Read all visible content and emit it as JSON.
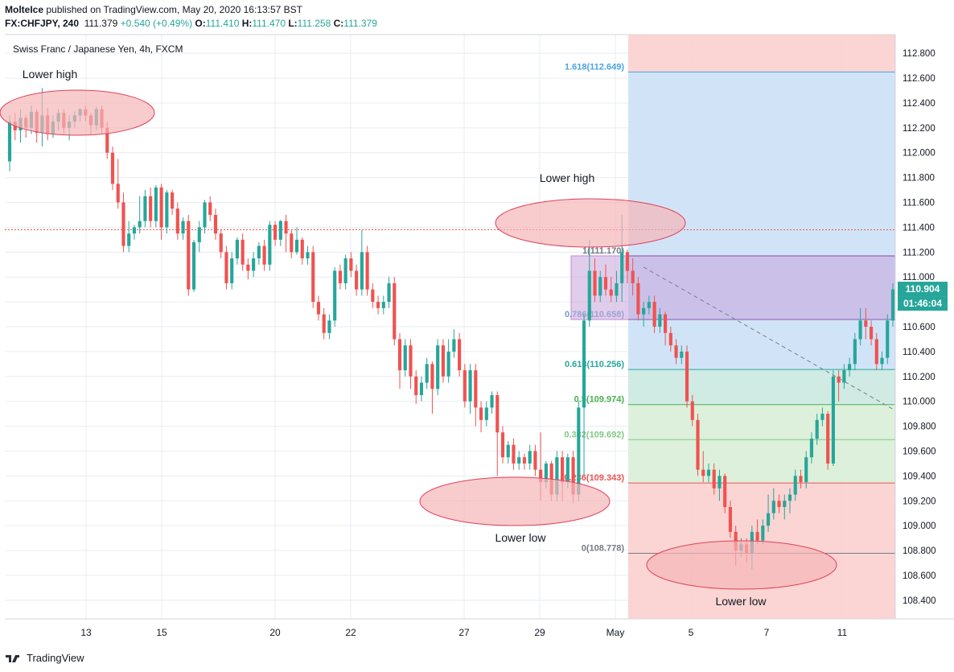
{
  "header": {
    "author": "MolteIce",
    "published": "published on TradingView.com, May 20, 2020 16:13:57 BST",
    "symbol": "FX:CHFJPY, 240",
    "last": "111.379",
    "change": "+0.540 (+0.49%)",
    "o_label": "O:",
    "o": "111.410",
    "h_label": "H:",
    "h": "111.470",
    "l_label": "L:",
    "l": "111.258",
    "c_label": "C:",
    "c": "111.379"
  },
  "footer": {
    "brand": "TradingView"
  },
  "colors": {
    "up": "#26a69a",
    "down": "#ef5350",
    "grid": "#e9ecf0",
    "ellipse_fill": "#f5b5b8",
    "ellipse_stroke": "#e0405a",
    "fib_red": "#f9d0ce",
    "fib_blue": "#cfe3f7",
    "fib_teal": "#cde9e3",
    "fib_green": "#dbefd9",
    "box_purple": "#c7a6dd",
    "price_badge": "#26a69a"
  },
  "chart_data": {
    "type": "candlestick",
    "title": "Swiss Franc / Japanese Yen, 4h, FXCM",
    "ylim": [
      108.25,
      112.95
    ],
    "y_ticks": [
      "112.800",
      "112.600",
      "112.400",
      "112.200",
      "112.000",
      "111.800",
      "111.600",
      "111.400",
      "111.200",
      "111.000",
      "110.800",
      "110.600",
      "110.400",
      "110.200",
      "110.000",
      "109.800",
      "109.600",
      "109.400",
      "109.200",
      "109.000",
      "108.800",
      "108.600",
      "108.400"
    ],
    "x_ticks": [
      "13",
      "15",
      "20",
      "22",
      "27",
      "29",
      "May",
      "5",
      "7",
      "11"
    ],
    "current_price": "110.904",
    "countdown": "01:46:04",
    "reference_line": 111.38,
    "candles": [
      [
        111.93,
        112.25,
        111.85,
        112.3
      ],
      [
        112.25,
        112.18,
        112.1,
        112.32
      ],
      [
        112.18,
        112.28,
        112.08,
        112.35
      ],
      [
        112.28,
        112.2,
        112.12,
        112.3
      ],
      [
        112.2,
        112.33,
        112.15,
        112.38
      ],
      [
        112.33,
        112.16,
        112.08,
        112.35
      ],
      [
        112.16,
        112.3,
        112.05,
        112.52
      ],
      [
        112.3,
        112.15,
        112.1,
        112.36
      ],
      [
        112.15,
        112.25,
        112.12,
        112.3
      ],
      [
        112.25,
        112.32,
        112.18,
        112.35
      ],
      [
        112.32,
        112.2,
        112.15,
        112.35
      ],
      [
        112.2,
        112.25,
        112.1,
        112.3
      ],
      [
        112.25,
        112.3,
        112.2,
        112.33
      ],
      [
        112.3,
        112.35,
        112.25,
        112.36
      ],
      [
        112.35,
        112.3,
        112.25,
        112.38
      ],
      [
        112.3,
        112.22,
        112.15,
        112.32
      ],
      [
        112.22,
        112.35,
        112.18,
        112.37
      ],
      [
        112.35,
        112.2,
        112.15,
        112.38
      ],
      [
        112.2,
        112.0,
        111.95,
        112.25
      ],
      [
        112.0,
        111.75,
        111.7,
        112.05
      ],
      [
        111.75,
        111.6,
        111.55,
        111.95
      ],
      [
        111.6,
        111.25,
        111.2,
        111.68
      ],
      [
        111.25,
        111.35,
        111.2,
        111.45
      ],
      [
        111.35,
        111.4,
        111.3,
        111.42
      ],
      [
        111.4,
        111.45,
        111.35,
        111.65
      ],
      [
        111.45,
        111.65,
        111.4,
        111.7
      ],
      [
        111.65,
        111.45,
        111.4,
        111.72
      ],
      [
        111.45,
        111.72,
        111.4,
        111.74
      ],
      [
        111.72,
        111.4,
        111.3,
        111.75
      ],
      [
        111.4,
        111.68,
        111.35,
        111.7
      ],
      [
        111.68,
        111.55,
        111.5,
        111.7
      ],
      [
        111.55,
        111.35,
        111.3,
        111.6
      ],
      [
        111.35,
        111.45,
        111.3,
        111.48
      ],
      [
        111.45,
        110.9,
        110.85,
        111.5
      ],
      [
        110.9,
        111.28,
        110.88,
        111.3
      ],
      [
        111.28,
        111.4,
        111.2,
        111.45
      ],
      [
        111.4,
        111.6,
        111.35,
        111.62
      ],
      [
        111.6,
        111.5,
        111.45,
        111.65
      ],
      [
        111.5,
        111.35,
        111.3,
        111.55
      ],
      [
        111.35,
        111.2,
        111.15,
        111.38
      ],
      [
        111.2,
        110.95,
        110.9,
        111.25
      ],
      [
        110.95,
        111.15,
        110.9,
        111.2
      ],
      [
        111.15,
        111.3,
        111.1,
        111.32
      ],
      [
        111.3,
        111.1,
        111.05,
        111.35
      ],
      [
        111.1,
        111.05,
        110.98,
        111.15
      ],
      [
        111.05,
        111.15,
        111.0,
        111.2
      ],
      [
        111.15,
        111.25,
        111.1,
        111.28
      ],
      [
        111.25,
        111.1,
        111.05,
        111.3
      ],
      [
        111.1,
        111.42,
        111.05,
        111.45
      ],
      [
        111.42,
        111.3,
        111.25,
        111.45
      ],
      [
        111.3,
        111.45,
        111.25,
        111.46
      ],
      [
        111.45,
        111.35,
        111.2,
        111.5
      ],
      [
        111.35,
        111.2,
        111.15,
        111.38
      ],
      [
        111.2,
        111.3,
        111.18,
        111.4
      ],
      [
        111.3,
        111.15,
        111.1,
        111.32
      ],
      [
        111.15,
        111.2,
        111.1,
        111.25
      ],
      [
        111.2,
        110.8,
        110.75,
        111.25
      ],
      [
        110.8,
        110.7,
        110.65,
        110.85
      ],
      [
        110.7,
        110.55,
        110.5,
        110.75
      ],
      [
        110.55,
        110.65,
        110.5,
        110.7
      ],
      [
        110.65,
        111.05,
        110.6,
        111.08
      ],
      [
        111.05,
        110.95,
        110.9,
        111.1
      ],
      [
        110.95,
        111.15,
        110.9,
        111.18
      ],
      [
        111.15,
        111.05,
        111.0,
        111.2
      ],
      [
        111.05,
        110.9,
        110.85,
        111.1
      ],
      [
        110.9,
        111.2,
        110.85,
        111.38
      ],
      [
        111.2,
        110.9,
        110.85,
        111.25
      ],
      [
        110.9,
        110.8,
        110.75,
        110.95
      ],
      [
        110.8,
        110.75,
        110.7,
        110.85
      ],
      [
        110.75,
        110.8,
        110.7,
        110.85
      ],
      [
        110.8,
        110.95,
        110.75,
        111.0
      ],
      [
        110.95,
        110.5,
        110.45,
        111.0
      ],
      [
        110.5,
        110.25,
        110.1,
        110.55
      ],
      [
        110.25,
        110.45,
        110.2,
        110.5
      ],
      [
        110.45,
        110.2,
        110.1,
        110.5
      ],
      [
        110.2,
        110.05,
        109.98,
        110.25
      ],
      [
        110.05,
        110.15,
        110.0,
        110.2
      ],
      [
        110.15,
        110.3,
        110.1,
        110.35
      ],
      [
        110.3,
        110.1,
        109.9,
        110.32
      ],
      [
        110.1,
        110.45,
        110.05,
        110.5
      ],
      [
        110.45,
        110.2,
        110.15,
        110.5
      ],
      [
        110.2,
        110.4,
        110.15,
        110.5
      ],
      [
        110.4,
        110.5,
        110.35,
        110.58
      ],
      [
        110.5,
        110.25,
        110.2,
        110.55
      ],
      [
        110.25,
        110.0,
        109.95,
        110.3
      ],
      [
        110.0,
        110.25,
        109.9,
        110.3
      ],
      [
        110.25,
        109.95,
        109.8,
        110.3
      ],
      [
        109.95,
        109.85,
        109.75,
        110.0
      ],
      [
        109.85,
        109.95,
        109.8,
        110.0
      ],
      [
        109.95,
        110.05,
        109.9,
        110.08
      ],
      [
        110.05,
        109.75,
        109.4,
        110.08
      ],
      [
        109.75,
        109.55,
        109.5,
        109.8
      ],
      [
        109.55,
        109.65,
        109.5,
        109.68
      ],
      [
        109.65,
        109.5,
        109.45,
        109.7
      ],
      [
        109.5,
        109.55,
        109.45,
        109.6
      ],
      [
        109.55,
        109.5,
        109.45,
        109.58
      ],
      [
        109.5,
        109.6,
        109.45,
        109.65
      ],
      [
        109.6,
        109.45,
        109.4,
        109.65
      ],
      [
        109.45,
        109.35,
        109.2,
        109.75
      ],
      [
        109.35,
        109.5,
        109.3,
        109.52
      ],
      [
        109.5,
        109.25,
        109.2,
        109.52
      ],
      [
        109.25,
        109.55,
        109.2,
        109.6
      ],
      [
        109.55,
        109.35,
        109.2,
        109.6
      ],
      [
        109.35,
        109.55,
        109.3,
        109.58
      ],
      [
        109.55,
        109.25,
        109.18,
        109.6
      ],
      [
        109.25,
        109.95,
        109.2,
        110.0
      ],
      [
        109.95,
        110.65,
        109.4,
        110.7
      ],
      [
        110.65,
        111.05,
        110.6,
        111.3
      ],
      [
        111.05,
        110.85,
        110.8,
        111.15
      ],
      [
        110.85,
        111.0,
        110.8,
        111.05
      ],
      [
        111.0,
        110.9,
        110.85,
        111.1
      ],
      [
        110.9,
        110.85,
        110.8,
        111.0
      ],
      [
        110.85,
        110.95,
        110.8,
        111.05
      ],
      [
        110.95,
        111.2,
        110.8,
        111.5
      ],
      [
        111.2,
        111.05,
        110.95,
        111.22
      ],
      [
        111.05,
        110.95,
        110.85,
        111.15
      ],
      [
        110.95,
        110.7,
        110.65,
        111.0
      ],
      [
        110.7,
        110.75,
        110.6,
        110.8
      ],
      [
        110.75,
        110.8,
        110.7,
        110.85
      ],
      [
        110.8,
        110.6,
        110.55,
        110.85
      ],
      [
        110.6,
        110.7,
        110.55,
        110.75
      ],
      [
        110.7,
        110.55,
        110.45,
        110.72
      ],
      [
        110.55,
        110.45,
        110.4,
        110.6
      ],
      [
        110.45,
        110.35,
        110.3,
        110.5
      ],
      [
        110.35,
        110.4,
        110.3,
        110.45
      ],
      [
        110.4,
        110.0,
        109.95,
        110.45
      ],
      [
        110.0,
        109.85,
        109.8,
        110.05
      ],
      [
        109.85,
        109.45,
        109.4,
        109.9
      ],
      [
        109.45,
        109.4,
        109.35,
        109.6
      ],
      [
        109.4,
        109.45,
        109.35,
        109.5
      ],
      [
        109.45,
        109.3,
        109.25,
        109.5
      ],
      [
        109.3,
        109.4,
        109.2,
        109.45
      ],
      [
        109.4,
        109.15,
        109.1,
        109.42
      ],
      [
        109.15,
        108.95,
        108.9,
        109.2
      ],
      [
        108.95,
        108.8,
        108.68,
        109.0
      ],
      [
        108.8,
        108.85,
        108.75,
        108.9
      ],
      [
        108.85,
        108.78,
        108.7,
        108.9
      ],
      [
        108.78,
        108.95,
        108.65,
        109.0
      ],
      [
        108.95,
        108.88,
        108.85,
        109.05
      ],
      [
        108.88,
        109.0,
        108.85,
        109.05
      ],
      [
        109.0,
        109.1,
        108.95,
        109.25
      ],
      [
        109.1,
        109.2,
        109.05,
        109.3
      ],
      [
        109.2,
        109.15,
        109.1,
        109.25
      ],
      [
        109.15,
        109.2,
        109.05,
        109.25
      ],
      [
        109.2,
        109.25,
        109.1,
        109.3
      ],
      [
        109.25,
        109.4,
        109.2,
        109.45
      ],
      [
        109.4,
        109.35,
        109.3,
        109.45
      ],
      [
        109.35,
        109.55,
        109.3,
        109.6
      ],
      [
        109.55,
        109.7,
        109.5,
        109.75
      ],
      [
        109.7,
        109.85,
        109.65,
        109.9
      ],
      [
        109.85,
        109.9,
        109.8,
        109.95
      ],
      [
        109.9,
        109.5,
        109.45,
        109.92
      ],
      [
        109.5,
        110.2,
        109.48,
        110.25
      ],
      [
        110.2,
        110.15,
        110.0,
        110.25
      ],
      [
        110.15,
        110.25,
        110.1,
        110.3
      ],
      [
        110.25,
        110.3,
        110.2,
        110.35
      ],
      [
        110.3,
        110.5,
        110.25,
        110.55
      ],
      [
        110.5,
        110.65,
        110.45,
        110.75
      ],
      [
        110.65,
        110.6,
        110.5,
        110.75
      ],
      [
        110.6,
        110.5,
        110.45,
        110.65
      ],
      [
        110.5,
        110.3,
        110.25,
        110.55
      ],
      [
        110.3,
        110.35,
        110.25,
        110.4
      ],
      [
        110.35,
        110.65,
        110.3,
        110.7
      ],
      [
        110.65,
        110.9,
        110.6,
        110.95
      ]
    ],
    "fib_levels": [
      {
        "label": "1.618(112.649)",
        "value": 112.649,
        "color": "#4aa3e0"
      },
      {
        "label": "1(111.170)",
        "value": 111.17,
        "color": "#787b86"
      },
      {
        "label": "0.786(110.658)",
        "value": 110.658,
        "color": "#6e9dc8"
      },
      {
        "label": "0.618(110.256)",
        "value": 110.256,
        "color": "#26a69a"
      },
      {
        "label": "0.5(109.974)",
        "value": 109.974,
        "color": "#4caf50"
      },
      {
        "label": "0.382(109.692)",
        "value": 109.692,
        "color": "#81c784"
      },
      {
        "label": "0.236(109.343)",
        "value": 109.343,
        "color": "#ef5350"
      },
      {
        "label": "0(108.778)",
        "value": 108.778,
        "color": "#787b86"
      }
    ],
    "annotations": [
      {
        "label": "Lower high",
        "index": 4,
        "price": 112.34
      },
      {
        "label": "Lower high",
        "index": 113,
        "price": 111.47
      },
      {
        "label": "Lower low",
        "index": 98,
        "price": 109.25
      },
      {
        "label": "Lower low",
        "index": 142,
        "price": 108.68
      }
    ]
  }
}
